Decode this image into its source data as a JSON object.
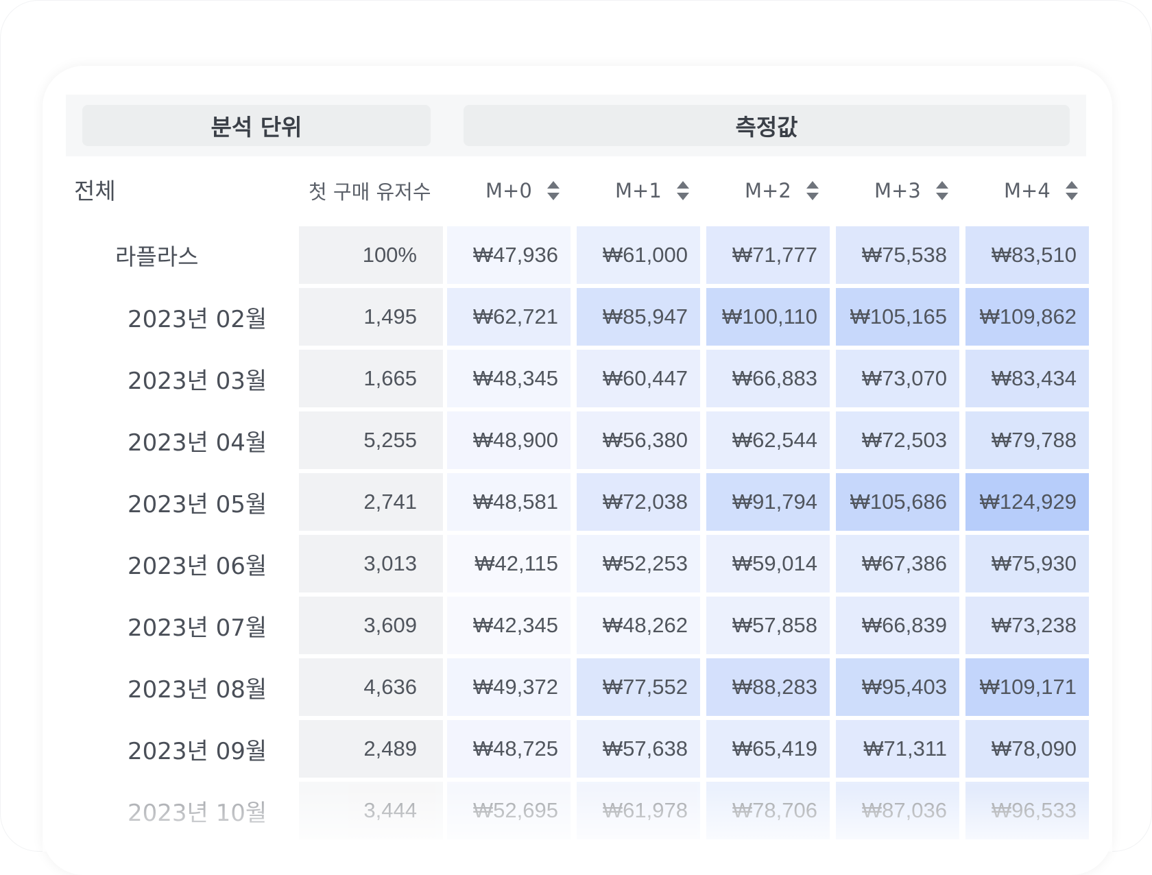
{
  "header": {
    "group_unit": "분석 단위",
    "group_measure": "측정값"
  },
  "columns": {
    "total": "전체",
    "first_purchase": "첫 구매 유저수",
    "months": [
      "M+0",
      "M+1",
      "M+2",
      "M+3",
      "M+4"
    ]
  },
  "rows": [
    {
      "label": "라플라스",
      "count": "100%",
      "values": [
        "₩47,936",
        "₩61,000",
        "₩71,777",
        "₩75,538",
        "₩83,510"
      ]
    },
    {
      "label": "2023년 02월",
      "count": "1,495",
      "values": [
        "₩62,721",
        "₩85,947",
        "₩100,110",
        "₩105,165",
        "₩109,862"
      ]
    },
    {
      "label": "2023년 03월",
      "count": "1,665",
      "values": [
        "₩48,345",
        "₩60,447",
        "₩66,883",
        "₩73,070",
        "₩83,434"
      ]
    },
    {
      "label": "2023년 04월",
      "count": "5,255",
      "values": [
        "₩48,900",
        "₩56,380",
        "₩62,544",
        "₩72,503",
        "₩79,788"
      ]
    },
    {
      "label": "2023년 05월",
      "count": "2,741",
      "values": [
        "₩48,581",
        "₩72,038",
        "₩91,794",
        "₩105,686",
        "₩124,929"
      ]
    },
    {
      "label": "2023년 06월",
      "count": "3,013",
      "values": [
        "₩42,115",
        "₩52,253",
        "₩59,014",
        "₩67,386",
        "₩75,930"
      ]
    },
    {
      "label": "2023년 07월",
      "count": "3,609",
      "values": [
        "₩42,345",
        "₩48,262",
        "₩57,858",
        "₩66,839",
        "₩73,238"
      ]
    },
    {
      "label": "2023년 08월",
      "count": "4,636",
      "values": [
        "₩49,372",
        "₩77,552",
        "₩88,283",
        "₩95,403",
        "₩109,171"
      ]
    },
    {
      "label": "2023년 09월",
      "count": "2,489",
      "values": [
        "₩48,725",
        "₩57,638",
        "₩65,419",
        "₩71,311",
        "₩78,090"
      ]
    },
    {
      "label": "2023년 10월",
      "count": "3,444",
      "values": [
        "₩52,695",
        "₩61,978",
        "₩78,706",
        "₩87,036",
        "₩96,533"
      ]
    }
  ],
  "colors": {
    "count_bg": "#f1f2f4",
    "heat_low": "#f8f9fe",
    "heat_high": "#b7cdfa",
    "text": "#50555d"
  },
  "icons": {
    "sort": "sort-up-down-icon"
  }
}
